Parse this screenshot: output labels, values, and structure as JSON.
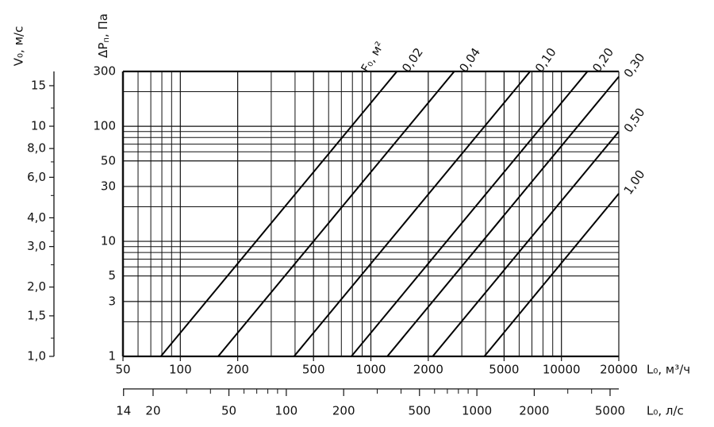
{
  "chart_data": {
    "type": "line",
    "x_label": "L₀, м³/ч",
    "x2_label": "L₀, л/с",
    "y_label": [
      "ΔP",
      "п",
      ", Па"
    ],
    "v_label": "V₀, м/с",
    "series_label": "F₀, м²",
    "log_x": true,
    "log_y": true,
    "grid": true,
    "color": "#000000",
    "xlim": [
      50,
      20000
    ],
    "xticks": [
      50,
      100,
      200,
      500,
      1000,
      2000,
      5000,
      10000,
      20000
    ],
    "xminor": [
      60,
      70,
      80,
      90,
      300,
      400,
      600,
      700,
      800,
      900,
      3000,
      4000,
      6000,
      7000,
      8000,
      9000
    ],
    "ylim": [
      1,
      300
    ],
    "yticks": [
      1,
      3,
      5,
      10,
      30,
      50,
      100,
      300
    ],
    "yminor": [
      2,
      6,
      7,
      8,
      9,
      20,
      60,
      70,
      80,
      90,
      200
    ],
    "vlim": [
      1,
      17.3
    ],
    "vticks": [
      {
        "value": 1,
        "label": "1,0"
      },
      {
        "value": 1.5,
        "label": "1,5"
      },
      {
        "value": 2,
        "label": "2,0"
      },
      {
        "value": 3,
        "label": "3,0"
      },
      {
        "value": 4,
        "label": "4,0"
      },
      {
        "value": 6,
        "label": "6,0"
      },
      {
        "value": 8,
        "label": "8,0"
      },
      10,
      15
    ],
    "vminor": [
      1.2,
      2.5,
      3.5,
      5,
      7,
      12
    ],
    "x2lim": [
      13.9,
      5556
    ],
    "x2ticks": [
      14,
      20,
      50,
      100,
      200,
      500,
      1000,
      2000,
      5000
    ],
    "x2minor": [
      30,
      40,
      60,
      70,
      80,
      90,
      300,
      400,
      600,
      700,
      800,
      900,
      3000,
      4000
    ],
    "series": [
      {
        "name": "0,02",
        "x": [
          79,
          1370
        ],
        "values": [
          1,
          300
        ]
      },
      {
        "name": "0,04",
        "x": [
          158,
          2740
        ],
        "values": [
          1,
          300
        ]
      },
      {
        "name": "0,10",
        "x": [
          395,
          6850
        ],
        "values": [
          1,
          300
        ]
      },
      {
        "name": "0,20",
        "x": [
          790,
          13700
        ],
        "values": [
          1,
          300
        ]
      },
      {
        "name": "0,30",
        "x": [
          1220,
          20000
        ],
        "values": [
          1,
          270
        ]
      },
      {
        "name": "0,50",
        "x": [
          2110,
          20000
        ],
        "values": [
          1,
          90
        ]
      },
      {
        "name": "1,00",
        "x": [
          3940,
          20000
        ],
        "values": [
          1,
          26
        ]
      }
    ]
  }
}
